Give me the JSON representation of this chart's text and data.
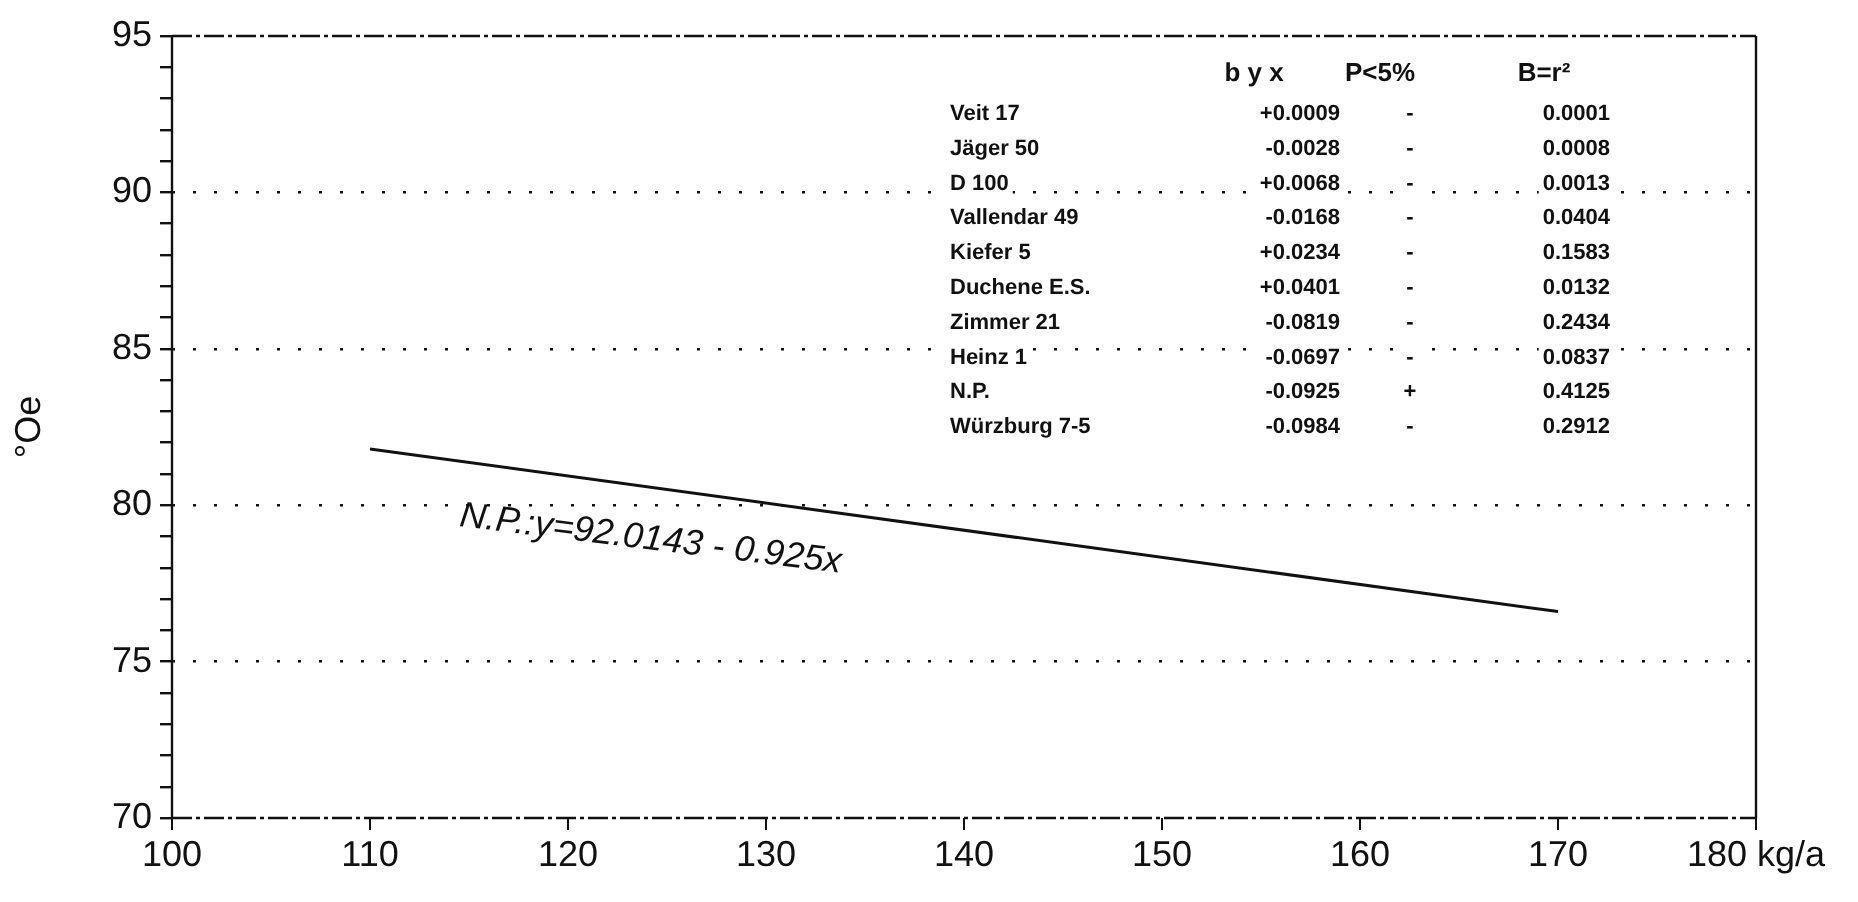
{
  "chart_data": {
    "type": "line",
    "ylabel": "°Oe",
    "x": [
      110,
      170
    ],
    "series": [
      {
        "color": "#111111",
        "values": [
          81.8,
          76.6
        ]
      }
    ],
    "xlim": [
      100,
      180
    ],
    "xticks": [
      100,
      110,
      120,
      130,
      140,
      150,
      160,
      170,
      {
        "value": 180,
        "label": "180 kg/a"
      }
    ],
    "ylim": [
      70,
      95
    ],
    "yticks": [
      70,
      {
        "value": 71,
        "label": null
      },
      {
        "value": 72,
        "label": null
      },
      {
        "value": 73,
        "label": null
      },
      {
        "value": 74,
        "label": null
      },
      75,
      {
        "value": 76,
        "label": null
      },
      {
        "value": 77,
        "label": null
      },
      {
        "value": 78,
        "label": null
      },
      {
        "value": 79,
        "label": null
      },
      80,
      {
        "value": 81,
        "label": null
      },
      {
        "value": 82,
        "label": null
      },
      {
        "value": 83,
        "label": null
      },
      {
        "value": 84,
        "label": null
      },
      85,
      {
        "value": 86,
        "label": null
      },
      {
        "value": 87,
        "label": null
      },
      {
        "value": 88,
        "label": null
      },
      {
        "value": 89,
        "label": null
      },
      90,
      {
        "value": 91,
        "label": null
      },
      {
        "value": 92,
        "label": null
      },
      {
        "value": 93,
        "label": null
      },
      {
        "value": 94,
        "label": null
      },
      95
    ],
    "grid": "y",
    "marker": "none",
    "annotations": [
      "b y x",
      "P<5%",
      "B=r²",
      "Veit 17",
      "+0.0009",
      "-",
      "0.0001",
      "Jäger 50",
      "-0.0028",
      "-",
      "0.0008",
      "D 100",
      "+0.0068",
      "-",
      "0.0013",
      "Vallendar 49",
      "-0.0168",
      "-",
      "0.0404",
      "Kiefer 5",
      "+0.0234",
      "-",
      "0.1583",
      "Duchene E.S.",
      "+0.0401",
      "-",
      "0.0132",
      "Zimmer 21",
      "-0.0819",
      "-",
      "0.2434",
      "Heinz 1",
      "-0.0697",
      "-",
      "0.0837",
      "N.P.",
      "-0.0925",
      "+",
      "0.4125",
      "Würzburg 7-5",
      "-0.0984",
      "-",
      "0.2912",
      "N.P.:y=92.0143 - 0.925x"
    ]
  }
}
